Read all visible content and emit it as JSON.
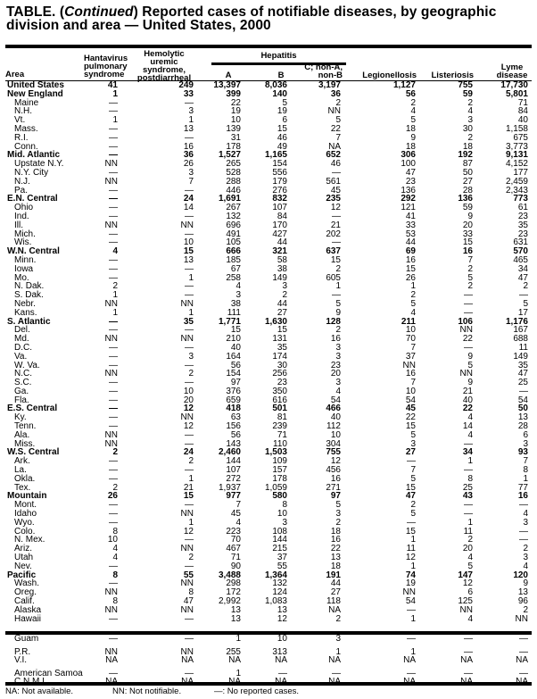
{
  "title": {
    "prefix": "TABLE. (",
    "continued": "Continued",
    "rest": ") Reported cases of notifiable diseases, by geographic division and area — United States, 2000"
  },
  "headers": {
    "area": "Area",
    "hantavirus": [
      "Hantavirus",
      "pulmonary",
      "syndrome"
    ],
    "hus": [
      "Hemolytic",
      "uremic",
      "syndrome,",
      "postdiarrheal"
    ],
    "hepatitis": "Hepatitis",
    "hep_a": "A",
    "hep_b": "B",
    "hep_c": [
      "C; non-A,",
      "non-B"
    ],
    "legionellosis": "Legionellosis",
    "listeriosis": "Listeriosis",
    "lyme": [
      "Lyme",
      "disease"
    ]
  },
  "rows": [
    {
      "type": "region",
      "v": [
        "United States",
        "41",
        "249",
        "13,397",
        "8,036",
        "3,197",
        "1,127",
        "755",
        "17,730"
      ]
    },
    {
      "type": "region",
      "v": [
        "New England",
        "1",
        "33",
        "399",
        "140",
        "36",
        "56",
        "59",
        "5,801"
      ]
    },
    {
      "type": "state",
      "v": [
        "Maine",
        "—",
        "—",
        "22",
        "5",
        "2",
        "2",
        "2",
        "71"
      ]
    },
    {
      "type": "state",
      "v": [
        "N.H.",
        "—",
        "3",
        "19",
        "19",
        "NN",
        "4",
        "4",
        "84"
      ]
    },
    {
      "type": "state",
      "v": [
        "Vt.",
        "1",
        "1",
        "10",
        "6",
        "5",
        "5",
        "3",
        "40"
      ]
    },
    {
      "type": "state",
      "v": [
        "Mass.",
        "—",
        "13",
        "139",
        "15",
        "22",
        "18",
        "30",
        "1,158"
      ]
    },
    {
      "type": "state",
      "v": [
        "R.I.",
        "—",
        "—",
        "31",
        "46",
        "7",
        "9",
        "2",
        "675"
      ]
    },
    {
      "type": "state",
      "v": [
        "Conn.",
        "—",
        "16",
        "178",
        "49",
        "NA",
        "18",
        "18",
        "3,773"
      ]
    },
    {
      "type": "region",
      "v": [
        "Mid. Atlantic",
        "—",
        "36",
        "1,527",
        "1,165",
        "652",
        "306",
        "192",
        "9,131"
      ]
    },
    {
      "type": "state",
      "v": [
        "Upstate N.Y.",
        "NN",
        "26",
        "265",
        "154",
        "46",
        "100",
        "87",
        "4,152"
      ]
    },
    {
      "type": "state",
      "v": [
        "N.Y. City",
        "—",
        "3",
        "528",
        "556",
        "—",
        "47",
        "50",
        "177"
      ]
    },
    {
      "type": "state",
      "v": [
        "N.J.",
        "NN",
        "7",
        "288",
        "179",
        "561",
        "23",
        "27",
        "2,459"
      ]
    },
    {
      "type": "state",
      "v": [
        "Pa.",
        "—",
        "—",
        "446",
        "276",
        "45",
        "136",
        "28",
        "2,343"
      ]
    },
    {
      "type": "region",
      "v": [
        "E.N. Central",
        "—",
        "24",
        "1,691",
        "832",
        "235",
        "292",
        "136",
        "773"
      ]
    },
    {
      "type": "state",
      "v": [
        "Ohio",
        "—",
        "14",
        "267",
        "107",
        "12",
        "121",
        "59",
        "61"
      ]
    },
    {
      "type": "state",
      "v": [
        "Ind.",
        "—",
        "—",
        "132",
        "84",
        "—",
        "41",
        "9",
        "23"
      ]
    },
    {
      "type": "state",
      "v": [
        "Ill.",
        "NN",
        "NN",
        "696",
        "170",
        "21",
        "33",
        "20",
        "35"
      ]
    },
    {
      "type": "state",
      "v": [
        "Mich.",
        "—",
        "—",
        "491",
        "427",
        "202",
        "53",
        "33",
        "23"
      ]
    },
    {
      "type": "state",
      "v": [
        "Wis.",
        "—",
        "10",
        "105",
        "44",
        "—",
        "44",
        "15",
        "631"
      ]
    },
    {
      "type": "region",
      "v": [
        "W.N. Central",
        "4",
        "15",
        "666",
        "321",
        "637",
        "69",
        "16",
        "570"
      ]
    },
    {
      "type": "state",
      "v": [
        "Minn.",
        "—",
        "13",
        "185",
        "58",
        "15",
        "16",
        "7",
        "465"
      ]
    },
    {
      "type": "state",
      "v": [
        "Iowa",
        "—",
        "—",
        "67",
        "38",
        "2",
        "15",
        "2",
        "34"
      ]
    },
    {
      "type": "state",
      "v": [
        "Mo.",
        "—",
        "1",
        "258",
        "149",
        "605",
        "26",
        "5",
        "47"
      ]
    },
    {
      "type": "state",
      "v": [
        "N. Dak.",
        "2",
        "—",
        "4",
        "3",
        "1",
        "1",
        "2",
        "2"
      ]
    },
    {
      "type": "state",
      "v": [
        "S. Dak.",
        "1",
        "—",
        "3",
        "2",
        "—",
        "2",
        "—",
        "—"
      ]
    },
    {
      "type": "state",
      "v": [
        "Nebr.",
        "NN",
        "NN",
        "38",
        "44",
        "5",
        "5",
        "—",
        "5"
      ]
    },
    {
      "type": "state",
      "v": [
        "Kans.",
        "1",
        "1",
        "111",
        "27",
        "9",
        "4",
        "—",
        "17"
      ]
    },
    {
      "type": "region",
      "v": [
        "S. Atlantic",
        "—",
        "35",
        "1,771",
        "1,630",
        "128",
        "211",
        "106",
        "1,176"
      ]
    },
    {
      "type": "state",
      "v": [
        "Del.",
        "—",
        "—",
        "15",
        "15",
        "2",
        "10",
        "NN",
        "167"
      ]
    },
    {
      "type": "state",
      "v": [
        "Md.",
        "NN",
        "NN",
        "210",
        "131",
        "16",
        "70",
        "22",
        "688"
      ]
    },
    {
      "type": "state",
      "v": [
        "D.C.",
        "—",
        "—",
        "40",
        "35",
        "3",
        "7",
        "—",
        "11"
      ]
    },
    {
      "type": "state",
      "v": [
        "Va.",
        "—",
        "3",
        "164",
        "174",
        "3",
        "37",
        "9",
        "149"
      ]
    },
    {
      "type": "state",
      "v": [
        "W. Va.",
        "—",
        "—",
        "56",
        "30",
        "23",
        "NN",
        "5",
        "35"
      ]
    },
    {
      "type": "state",
      "v": [
        "N.C.",
        "NN",
        "2",
        "154",
        "256",
        "20",
        "16",
        "NN",
        "47"
      ]
    },
    {
      "type": "state",
      "v": [
        "S.C.",
        "—",
        "—",
        "97",
        "23",
        "3",
        "7",
        "9",
        "25"
      ]
    },
    {
      "type": "state",
      "v": [
        "Ga.",
        "—",
        "10",
        "376",
        "350",
        "4",
        "10",
        "21",
        "—"
      ]
    },
    {
      "type": "state",
      "v": [
        "Fla.",
        "—",
        "20",
        "659",
        "616",
        "54",
        "54",
        "40",
        "54"
      ]
    },
    {
      "type": "region",
      "v": [
        "E.S. Central",
        "—",
        "12",
        "418",
        "501",
        "466",
        "45",
        "22",
        "50"
      ]
    },
    {
      "type": "state",
      "v": [
        "Ky.",
        "—",
        "NN",
        "63",
        "81",
        "40",
        "22",
        "4",
        "13"
      ]
    },
    {
      "type": "state",
      "v": [
        "Tenn.",
        "—",
        "12",
        "156",
        "239",
        "112",
        "15",
        "14",
        "28"
      ]
    },
    {
      "type": "state",
      "v": [
        "Ala.",
        "NN",
        "—",
        "56",
        "71",
        "10",
        "5",
        "4",
        "6"
      ]
    },
    {
      "type": "state",
      "v": [
        "Miss.",
        "NN",
        "—",
        "143",
        "110",
        "304",
        "3",
        "—",
        "3"
      ]
    },
    {
      "type": "region",
      "v": [
        "W.S. Central",
        "2",
        "24",
        "2,460",
        "1,503",
        "755",
        "27",
        "34",
        "93"
      ]
    },
    {
      "type": "state",
      "v": [
        "Ark.",
        "—",
        "2",
        "144",
        "109",
        "12",
        "—",
        "1",
        "7"
      ]
    },
    {
      "type": "state",
      "v": [
        "La.",
        "—",
        "—",
        "107",
        "157",
        "456",
        "7",
        "—",
        "8"
      ]
    },
    {
      "type": "state",
      "v": [
        "Okla.",
        "—",
        "1",
        "272",
        "178",
        "16",
        "5",
        "8",
        "1"
      ]
    },
    {
      "type": "state",
      "v": [
        "Tex.",
        "2",
        "21",
        "1,937",
        "1,059",
        "271",
        "15",
        "25",
        "77"
      ]
    },
    {
      "type": "region",
      "v": [
        "Mountain",
        "26",
        "15",
        "977",
        "580",
        "97",
        "47",
        "43",
        "16"
      ]
    },
    {
      "type": "state",
      "v": [
        "Mont.",
        "—",
        "—",
        "7",
        "8",
        "5",
        "2",
        "—",
        "—"
      ]
    },
    {
      "type": "state",
      "v": [
        "Idaho",
        "—",
        "NN",
        "45",
        "10",
        "3",
        "5",
        "—",
        "4"
      ]
    },
    {
      "type": "state",
      "v": [
        "Wyo.",
        "—",
        "1",
        "4",
        "3",
        "2",
        "—",
        "1",
        "3"
      ]
    },
    {
      "type": "state",
      "v": [
        "Colo.",
        "8",
        "12",
        "223",
        "108",
        "18",
        "15",
        "11",
        "—"
      ]
    },
    {
      "type": "state",
      "v": [
        "N. Mex.",
        "10",
        "—",
        "70",
        "144",
        "16",
        "1",
        "2",
        "—"
      ]
    },
    {
      "type": "state",
      "v": [
        "Ariz.",
        "4",
        "NN",
        "467",
        "215",
        "22",
        "11",
        "20",
        "2"
      ]
    },
    {
      "type": "state",
      "v": [
        "Utah",
        "4",
        "2",
        "71",
        "37",
        "13",
        "12",
        "4",
        "3"
      ]
    },
    {
      "type": "state",
      "v": [
        "Nev.",
        "—",
        "—",
        "90",
        "55",
        "18",
        "1",
        "5",
        "4"
      ]
    },
    {
      "type": "region",
      "v": [
        "Pacific",
        "8",
        "55",
        "3,488",
        "1,364",
        "191",
        "74",
        "147",
        "120"
      ]
    },
    {
      "type": "state",
      "v": [
        "Wash.",
        "—",
        "NN",
        "298",
        "132",
        "44",
        "19",
        "12",
        "9"
      ]
    },
    {
      "type": "state",
      "v": [
        "Oreg.",
        "NN",
        "8",
        "172",
        "124",
        "27",
        "NN",
        "6",
        "13"
      ]
    },
    {
      "type": "state",
      "v": [
        "Calif.",
        "8",
        "47",
        "2,992",
        "1,083",
        "118",
        "54",
        "125",
        "96"
      ]
    },
    {
      "type": "state",
      "v": [
        "Alaska",
        "NN",
        "NN",
        "13",
        "13",
        "NA",
        "—",
        "NN",
        "2"
      ]
    },
    {
      "type": "state",
      "v": [
        "Hawaii",
        "—",
        "—",
        "13",
        "12",
        "2",
        "1",
        "4",
        "NN"
      ]
    }
  ],
  "territories": [
    {
      "type": "state",
      "v": [
        "Guam",
        "—",
        "—",
        "1",
        "10",
        "3",
        "—",
        "—",
        "—"
      ]
    },
    {
      "type": "state",
      "gap": true,
      "v": [
        "P.R.",
        "NN",
        "NN",
        "255",
        "313",
        "1",
        "1",
        "—",
        "—"
      ]
    },
    {
      "type": "state",
      "v": [
        "V.I.",
        "NA",
        "NA",
        "NA",
        "NA",
        "NA",
        "NA",
        "NA",
        "NA"
      ]
    },
    {
      "type": "state",
      "gap": true,
      "v": [
        "American Samoa",
        "—",
        "—",
        "1",
        "—",
        "—",
        "—",
        "—",
        "—"
      ]
    },
    {
      "type": "state",
      "v": [
        "C.N.M.I.",
        "NA",
        "NA",
        "NA",
        "NA",
        "NA",
        "NA",
        "NA",
        "NA"
      ]
    }
  ],
  "footnotes": {
    "na": "NA: Not available.",
    "nn": "NN: Not notifiable.",
    "dash": "—: No reported cases."
  }
}
